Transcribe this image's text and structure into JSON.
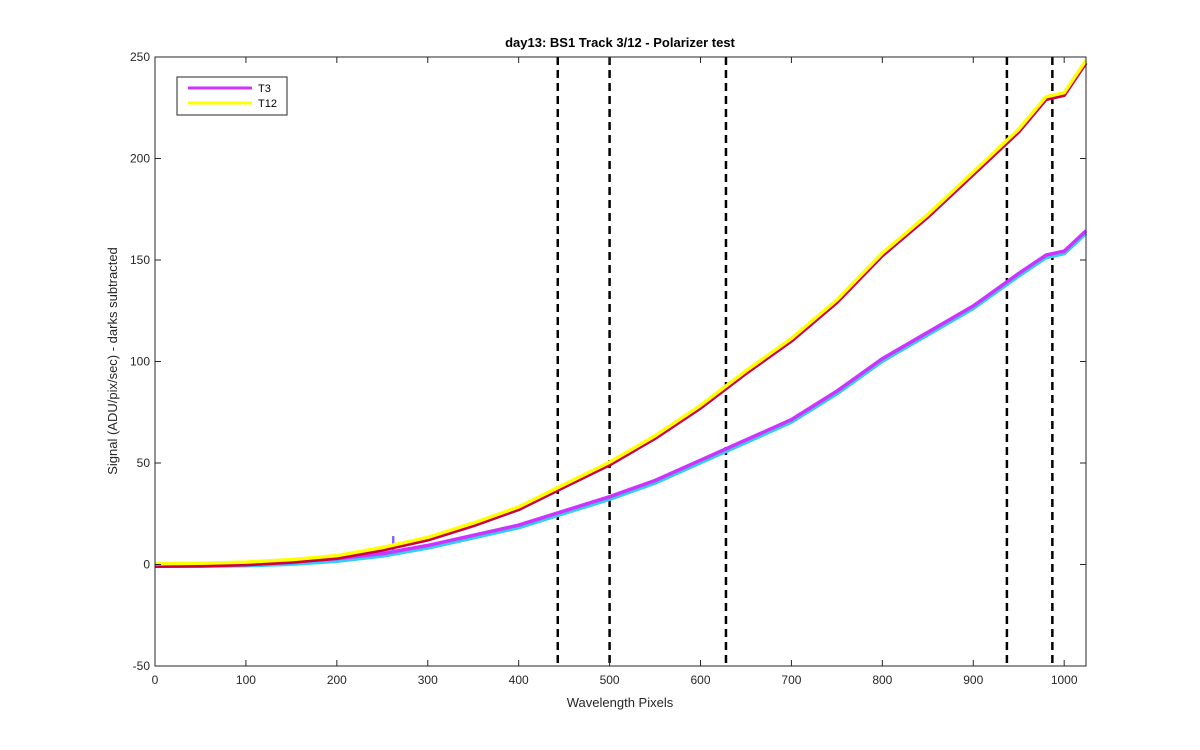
{
  "chart_data": {
    "type": "line",
    "title": "day13: BS1  Track 3/12 - Polarizer test",
    "xlabel": "Wavelength Pixels",
    "ylabel": "Signal (ADU/pix/sec) - darks subtracted",
    "xlim": [
      0,
      1024
    ],
    "ylim": [
      -50,
      250
    ],
    "xticks": [
      0,
      100,
      200,
      300,
      400,
      500,
      600,
      700,
      800,
      900,
      1000
    ],
    "yticks": [
      -50,
      0,
      50,
      100,
      150,
      200,
      250
    ],
    "grid": false,
    "legend_position": "top-left",
    "vlines": [
      443,
      500,
      628,
      937,
      987
    ],
    "series": [
      {
        "name": "T3",
        "color": "#cc33ff",
        "shadow_color": "#33ccff",
        "x": [
          0,
          50,
          100,
          150,
          200,
          250,
          300,
          350,
          400,
          450,
          500,
          550,
          600,
          650,
          700,
          750,
          800,
          850,
          900,
          950,
          980,
          1000,
          1024
        ],
        "y": [
          0,
          0,
          0.3,
          1,
          2.5,
          5,
          9,
          14,
          19,
          26,
          33,
          41,
          51,
          61,
          71,
          85,
          101,
          114,
          127,
          143,
          152,
          154,
          164
        ],
        "spike": {
          "x": 262,
          "y": 14
        }
      },
      {
        "name": "T12",
        "color": "#ffff00",
        "shadow_color": "#cc0044",
        "x": [
          0,
          50,
          100,
          150,
          200,
          250,
          300,
          350,
          400,
          450,
          500,
          550,
          600,
          650,
          700,
          750,
          800,
          850,
          900,
          950,
          980,
          1000,
          1024
        ],
        "y": [
          0,
          0.2,
          0.8,
          2,
          4,
          8,
          13,
          20,
          28,
          39,
          50,
          63,
          78,
          95,
          111,
          130,
          153,
          172,
          193,
          214,
          230,
          232,
          248
        ]
      }
    ]
  }
}
